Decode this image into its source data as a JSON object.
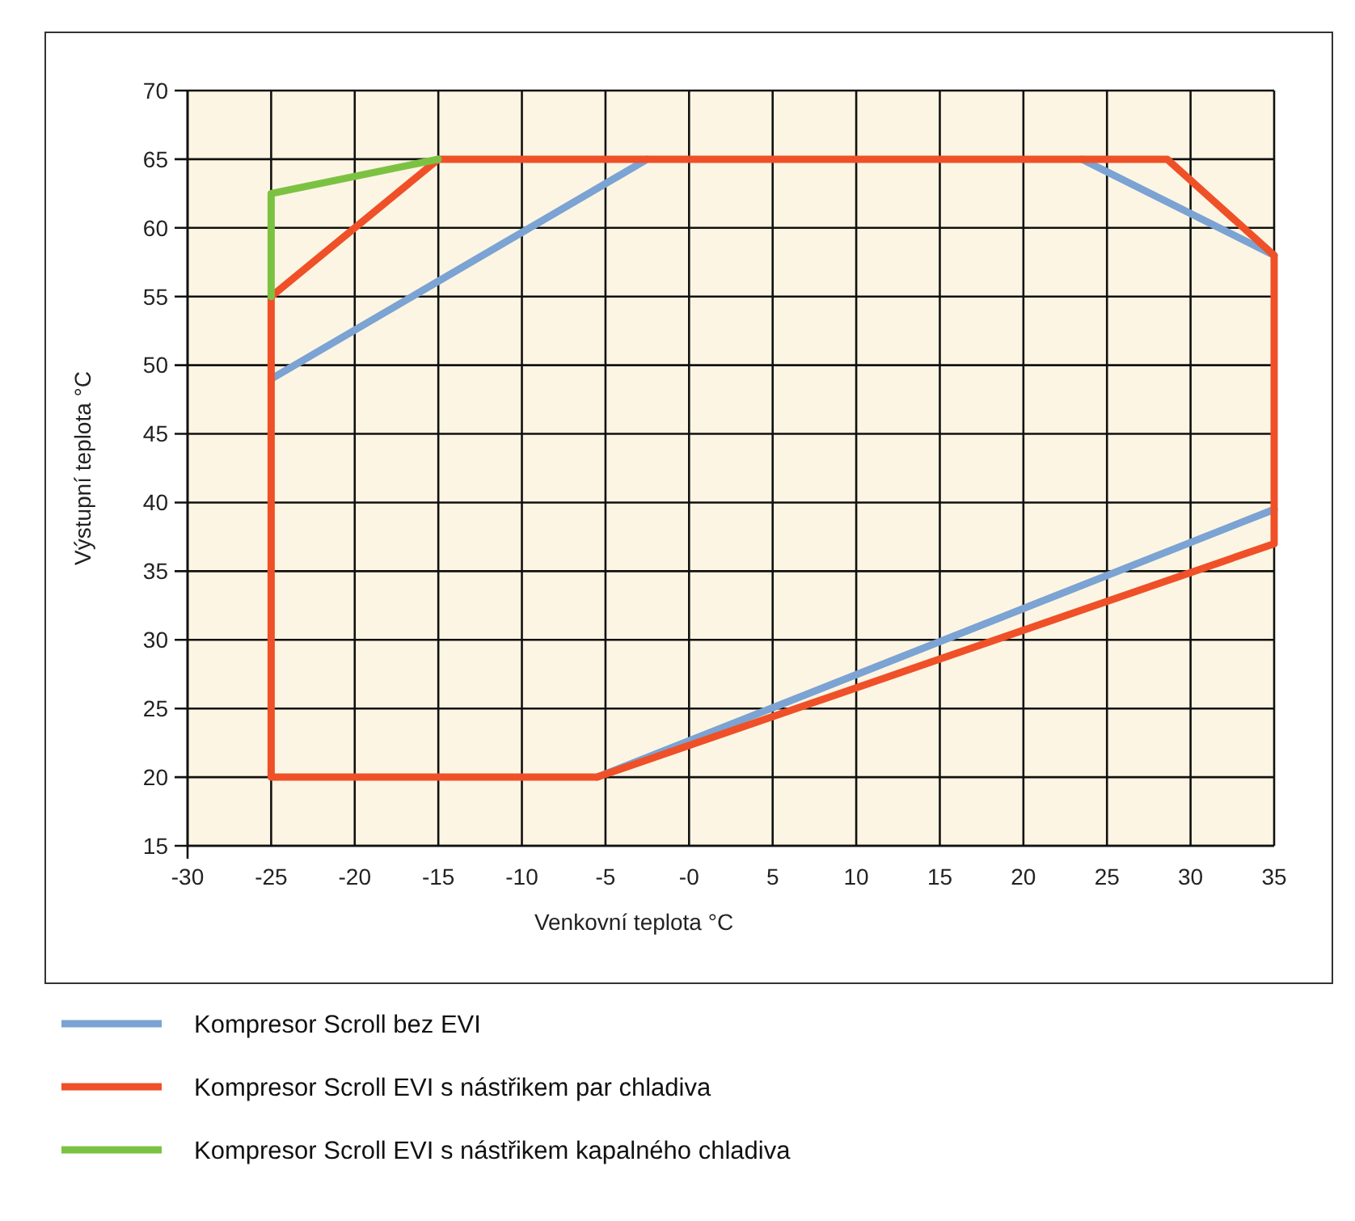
{
  "chart_data": {
    "type": "line",
    "xlabel": "Venkovní teplota °C",
    "ylabel": "Výstupní teplota °C",
    "xlim": [
      -30,
      35
    ],
    "xticks": [
      -30,
      -25,
      -20,
      -15,
      -10,
      -5,
      {
        "value": 0,
        "label": "-0"
      },
      5,
      10,
      15,
      20,
      25,
      30,
      35
    ],
    "ylim": [
      15,
      70
    ],
    "yticks": [
      15,
      20,
      25,
      30,
      35,
      40,
      45,
      50,
      55,
      60,
      65,
      70
    ],
    "grid": true,
    "legend": "bottom",
    "line_style": "solid",
    "series": [
      {
        "name": "Kompresor Scroll bez EVI",
        "color": "#7ba3d3",
        "x": [
          -25,
          -2.5,
          null,
          23.5,
          35,
          null,
          35,
          -5.5
        ],
        "values": [
          49,
          65,
          null,
          65,
          58,
          null,
          39.5,
          20
        ]
      },
      {
        "name": "Kompresor Scroll EVI s nástřikem par chladiva",
        "color": "#ef5028",
        "x": [
          -25,
          -25,
          -15,
          28.6,
          35,
          35,
          -5.5,
          null,
          -5.5,
          -25
        ],
        "values": [
          20,
          55,
          65,
          65,
          58,
          37,
          20,
          null,
          20,
          20
        ]
      },
      {
        "name": "Kompresor Scroll EVI s nástřikem kapalného chladiva",
        "color": "#7cc242",
        "x": [
          -25,
          -25,
          -15
        ],
        "values": [
          55,
          62.5,
          65
        ]
      }
    ]
  }
}
